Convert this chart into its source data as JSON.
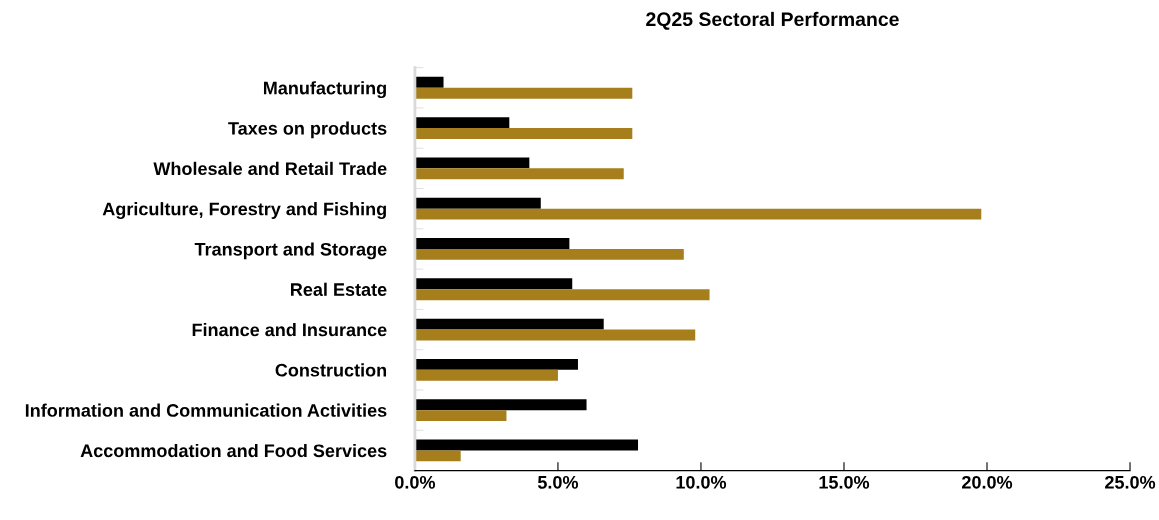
{
  "chart_data": {
    "type": "bar",
    "orientation": "horizontal",
    "title": "2Q25 Sectoral Performance",
    "categories": [
      "Manufacturing",
      "Taxes on products",
      "Wholesale and Retail Trade",
      "Agriculture, Forestry and Fishing",
      "Transport and Storage",
      "Real Estate",
      "Finance and Insurance",
      "Construction",
      "Information and Communication Activities",
      "Accommodation and Food Services"
    ],
    "series": [
      {
        "color": "#000000",
        "values": [
          1.0,
          3.3,
          4.0,
          4.4,
          5.4,
          5.5,
          6.6,
          5.7,
          6.0,
          7.8
        ]
      },
      {
        "color": "#a67f1c",
        "values": [
          7.6,
          7.6,
          7.3,
          19.8,
          9.4,
          10.3,
          9.8,
          5.0,
          3.2,
          1.6
        ]
      }
    ],
    "xlim": [
      0,
      25
    ],
    "xticks": [
      {
        "value": 0,
        "label": "0.0%"
      },
      {
        "value": 5,
        "label": "5.0%"
      },
      {
        "value": 10,
        "label": "10.0%"
      },
      {
        "value": 15,
        "label": "15.0%"
      },
      {
        "value": 20,
        "label": "20.0%"
      },
      {
        "value": 25,
        "label": "25.0%"
      }
    ],
    "grid": false,
    "legend": false
  }
}
